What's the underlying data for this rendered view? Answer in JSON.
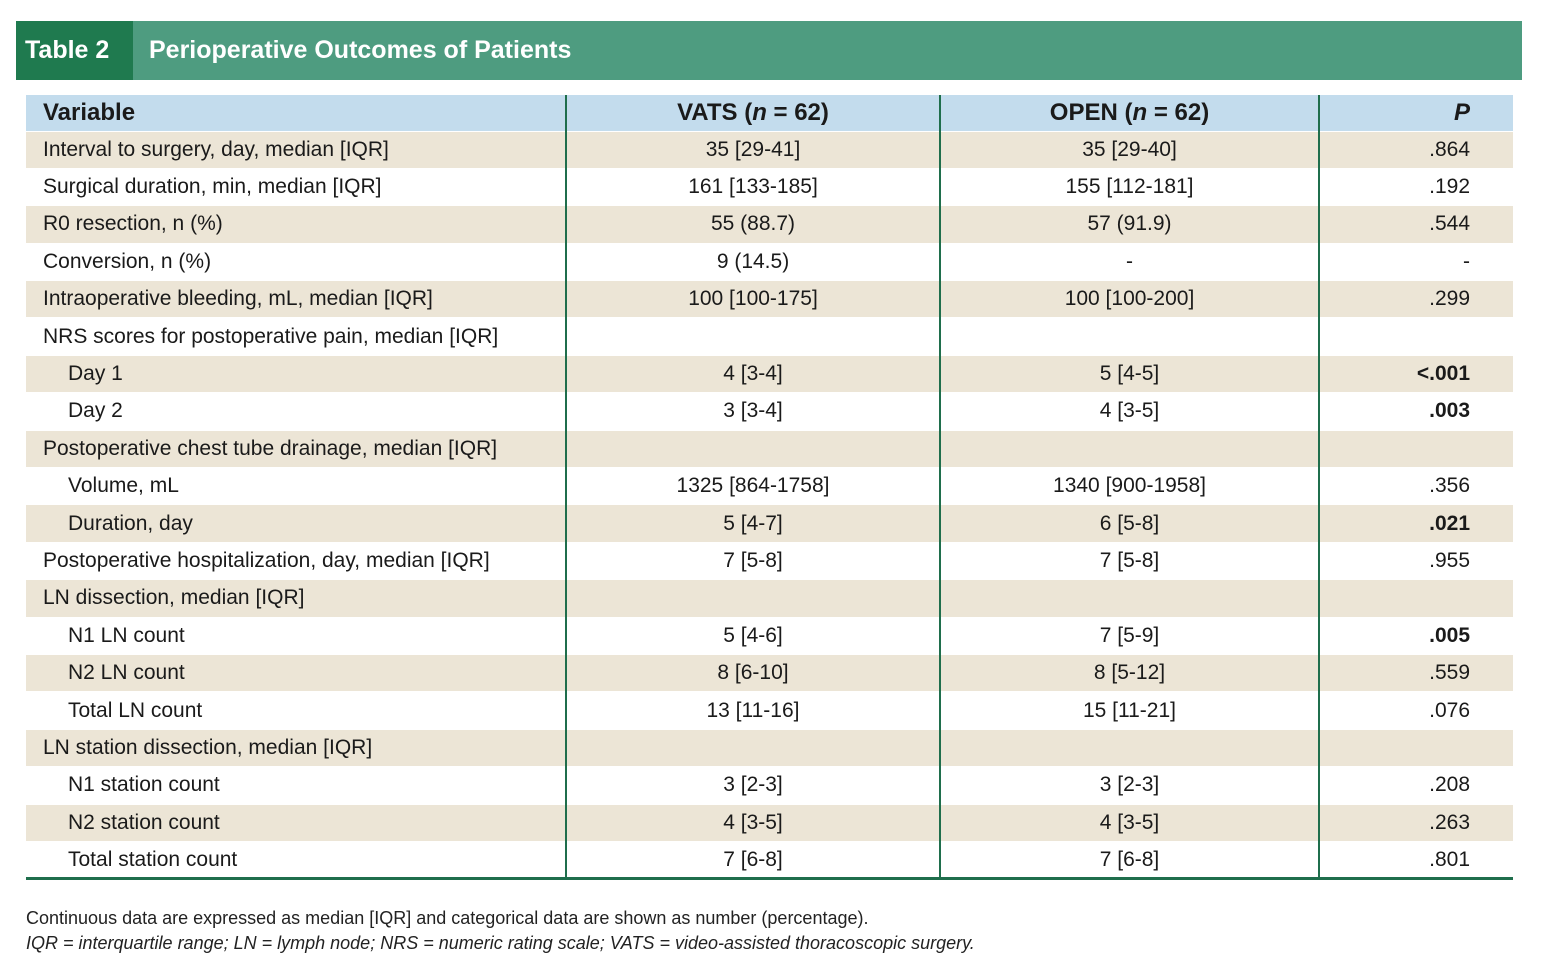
{
  "title": {
    "label": "Table 2",
    "text": "Perioperative Outcomes of Patients"
  },
  "header": {
    "variable": "Variable",
    "vats_prefix": "VATS (",
    "vats_n": "n",
    "vats_suffix": " = 62)",
    "open_prefix": "OPEN (",
    "open_n": "n",
    "open_suffix": " = 62)",
    "p": "P"
  },
  "rows": [
    {
      "variable": "Interval to surgery, day, median [IQR]",
      "vats": "35 [29-41]",
      "open": "35 [29-40]",
      "p": ".864",
      "sub": false,
      "bold": false
    },
    {
      "variable": "Surgical duration, min, median [IQR]",
      "vats": "161 [133-185]",
      "open": "155 [112-181]",
      "p": ".192",
      "sub": false,
      "bold": false
    },
    {
      "variable": "R0 resection, n (%)",
      "vats": "55 (88.7)",
      "open": "57 (91.9)",
      "p": ".544",
      "sub": false,
      "bold": false
    },
    {
      "variable": "Conversion, n (%)",
      "vats": "9 (14.5)",
      "open": "-",
      "p": "-",
      "sub": false,
      "bold": false
    },
    {
      "variable": "Intraoperative bleeding, mL, median [IQR]",
      "vats": "100 [100-175]",
      "open": "100 [100-200]",
      "p": ".299",
      "sub": false,
      "bold": false
    },
    {
      "variable": "NRS scores for postoperative pain, median [IQR]",
      "vats": "",
      "open": "",
      "p": "",
      "sub": false,
      "bold": false
    },
    {
      "variable": "Day 1",
      "vats": "4 [3-4]",
      "open": "5 [4-5]",
      "p": "<.001",
      "sub": true,
      "bold": true
    },
    {
      "variable": "Day 2",
      "vats": "3 [3-4]",
      "open": "4 [3-5]",
      "p": ".003",
      "sub": true,
      "bold": true
    },
    {
      "variable": "Postoperative chest tube drainage, median [IQR]",
      "vats": "",
      "open": "",
      "p": "",
      "sub": false,
      "bold": false
    },
    {
      "variable": "Volume, mL",
      "vats": "1325 [864-1758]",
      "open": "1340 [900-1958]",
      "p": ".356",
      "sub": true,
      "bold": false
    },
    {
      "variable": "Duration, day",
      "vats": "5 [4-7]",
      "open": "6 [5-8]",
      "p": ".021",
      "sub": true,
      "bold": true
    },
    {
      "variable": "Postoperative hospitalization, day, median [IQR]",
      "vats": "7 [5-8]",
      "open": "7 [5-8]",
      "p": ".955",
      "sub": false,
      "bold": false
    },
    {
      "variable": "LN dissection, median [IQR]",
      "vats": "",
      "open": "",
      "p": "",
      "sub": false,
      "bold": false
    },
    {
      "variable": "N1 LN count",
      "vats": "5 [4-6]",
      "open": "7 [5-9]",
      "p": ".005",
      "sub": true,
      "bold": true
    },
    {
      "variable": "N2 LN count",
      "vats": "8 [6-10]",
      "open": "8 [5-12]",
      "p": ".559",
      "sub": true,
      "bold": false
    },
    {
      "variable": "Total LN count",
      "vats": "13 [11-16]",
      "open": "15 [11-21]",
      "p": ".076",
      "sub": true,
      "bold": false
    },
    {
      "variable": "LN station dissection, median [IQR]",
      "vats": "",
      "open": "",
      "p": "",
      "sub": false,
      "bold": false
    },
    {
      "variable": "N1 station count",
      "vats": "3 [2-3]",
      "open": "3 [2-3]",
      "p": ".208",
      "sub": true,
      "bold": false
    },
    {
      "variable": "N2 station count",
      "vats": "4 [3-5]",
      "open": "4 [3-5]",
      "p": ".263",
      "sub": true,
      "bold": false
    },
    {
      "variable": "Total station count",
      "vats": "7 [6-8]",
      "open": "7 [6-8]",
      "p": ".801",
      "sub": true,
      "bold": false
    }
  ],
  "footnote": {
    "line1": "Continuous data are expressed as median [IQR] and categorical data are shown as number (percentage).",
    "line2": "IQR = interquartile range; LN = lymph node; NRS = numeric rating scale; VATS = video-assisted thoracoscopic surgery."
  },
  "colors": {
    "title_bar": "#4e9c80",
    "title_label": "#1f7a4f",
    "header_bg": "#c3dced",
    "stripe": "#ece5d6",
    "rule": "#1f6e4c"
  }
}
